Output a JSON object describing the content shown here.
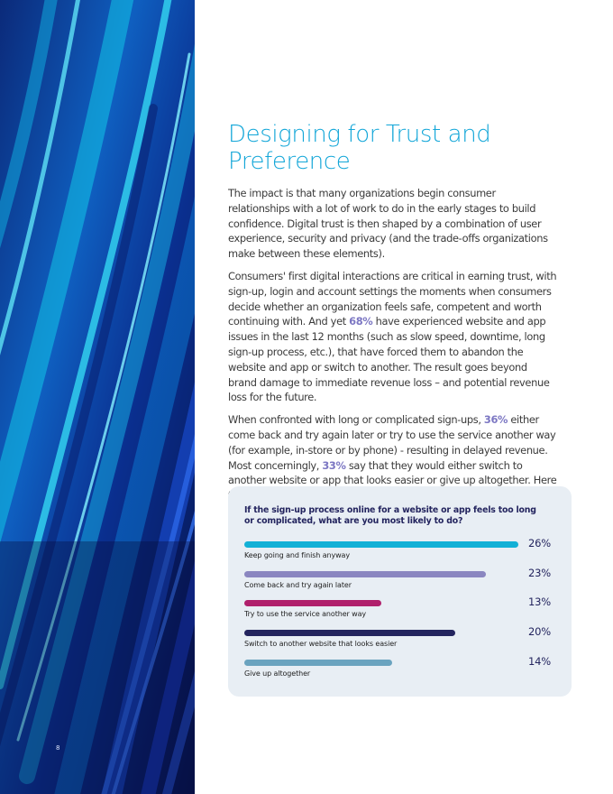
{
  "page": {
    "number": "8"
  },
  "article": {
    "title_line1": "Designing for Trust and",
    "title_line2": "Preference",
    "p1": "The impact is that many organizations begin consumer relationships with a lot of work to do in the early stages to build confidence. Digital trust is then shaped by a combination of user experience, security and privacy (and the trade-offs organizations make between these elements).",
    "p2_a": "Consumers' first digital interactions are critical in earning trust, with sign-up, login and account settings the moments when consumers decide whether an organization feels safe, competent and worth continuing with. And yet ",
    "p2_hl": "68%",
    "p2_b": " have experienced website and app issues in the last 12 months (such as slow speed, downtime, long sign-up process, etc.), that have forced them to abandon the website and app or switch to another. The result goes beyond brand damage to immediate revenue loss – and potential revenue loss for the future.",
    "p3_a": "When confronted with long or complicated sign-ups, ",
    "p3_hl1": "36%",
    "p3_b": " either come back and try again later or try to use the service another way (for example, in-store or by phone) - resulting in delayed revenue. Most concerningly, ",
    "p3_hl2": "33%",
    "p3_c": " say that they would either switch to another website or app that looks easier or give up altogether. Here the revenue loss is immediate and lasting."
  },
  "poll": {
    "question": "If the sign-up process online for a website or app feels too long or complicated, what are you most likely to do?",
    "items": [
      {
        "label": "Keep going and finish anyway",
        "value_text": "26%",
        "value": 26,
        "fill": 1.0,
        "color": "#12b0d6"
      },
      {
        "label": "Come back and try again later",
        "value_text": "23%",
        "value": 23,
        "fill": 0.88,
        "color": "#8a86c0"
      },
      {
        "label": "Try to use the service another way",
        "value_text": "13%",
        "value": 13,
        "fill": 0.5,
        "color": "#b0206c"
      },
      {
        "label": "Switch to another website that looks easier",
        "value_text": "20%",
        "value": 20,
        "fill": 0.77,
        "color": "#23245e"
      },
      {
        "label": "Give up altogether",
        "value_text": "14%",
        "value": 14,
        "fill": 0.54,
        "color": "#6aa3bf"
      }
    ]
  },
  "colors": {
    "title": "#12a6d8",
    "highlight": "#7c77c3",
    "panel": "#e8eef4"
  }
}
